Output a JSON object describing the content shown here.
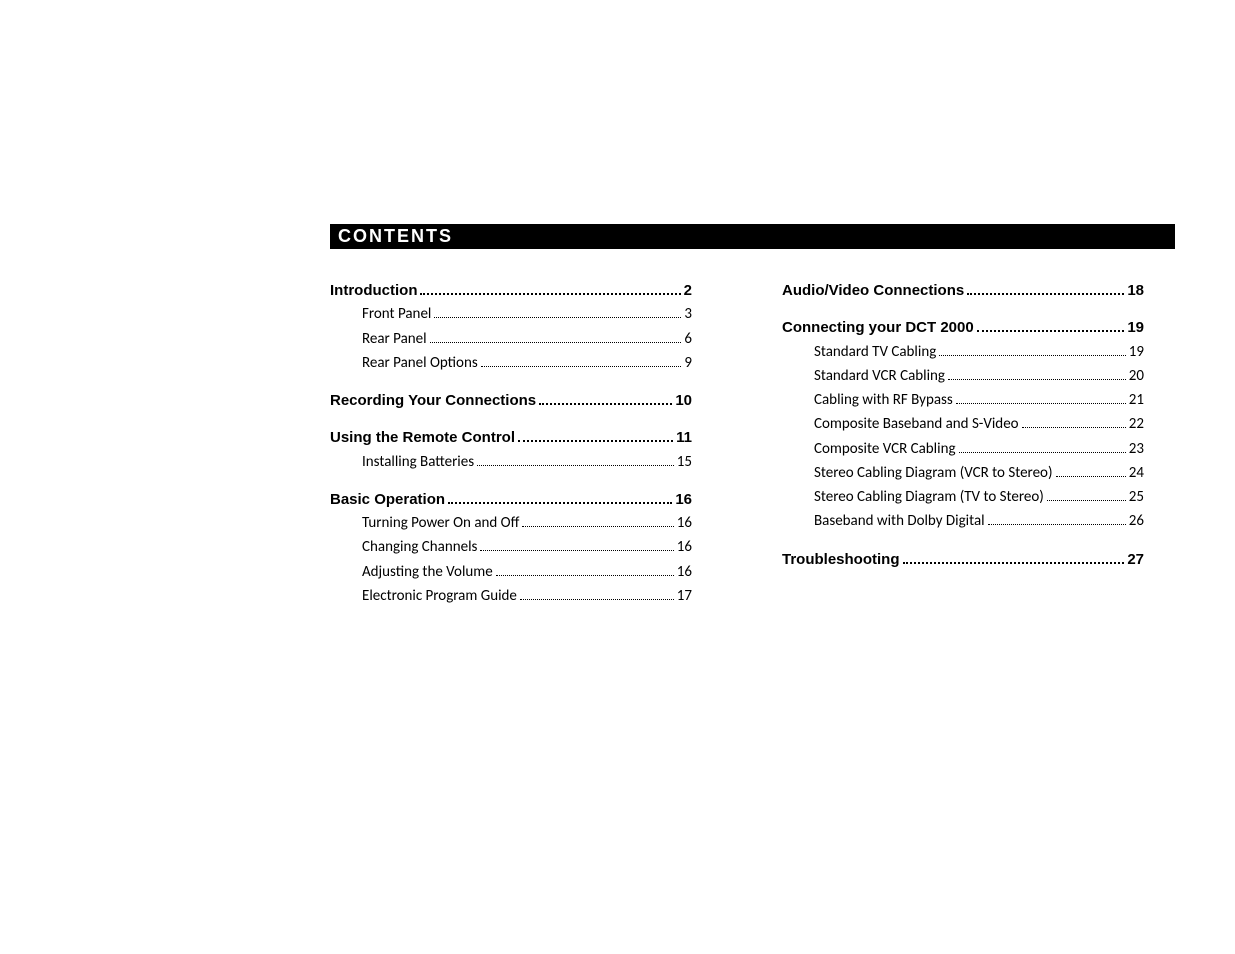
{
  "heading": "CONTENTS",
  "left": [
    {
      "kind": "section",
      "label": "Introduction",
      "page": "2"
    },
    {
      "kind": "sub",
      "label": "Front Panel",
      "page": "3"
    },
    {
      "kind": "sub",
      "label": "Rear Panel",
      "page": "6"
    },
    {
      "kind": "sub",
      "label": "Rear Panel Options",
      "page": "9"
    },
    {
      "kind": "section",
      "label": "Recording Your Connections",
      "page": "10"
    },
    {
      "kind": "section",
      "label": "Using the Remote Control",
      "page": "11"
    },
    {
      "kind": "sub",
      "label": "Installing Batteries",
      "page": "15"
    },
    {
      "kind": "section",
      "label": "Basic Operation",
      "page": "16"
    },
    {
      "kind": "sub",
      "label": "Turning Power On and Off",
      "page": "16"
    },
    {
      "kind": "sub",
      "label": "Changing Channels",
      "page": "16"
    },
    {
      "kind": "sub",
      "label": "Adjusting the Volume",
      "page": "16"
    },
    {
      "kind": "sub",
      "label": "Electronic Program Guide",
      "page": "17"
    }
  ],
  "right": [
    {
      "kind": "section",
      "label": "Audio/Video Connections",
      "page": "18"
    },
    {
      "kind": "section",
      "label": "Connecting your DCT 2000",
      "page": "19"
    },
    {
      "kind": "sub",
      "label": "Standard TV Cabling",
      "page": "19"
    },
    {
      "kind": "sub",
      "label": "Standard VCR Cabling",
      "page": "20"
    },
    {
      "kind": "sub",
      "label": "Cabling with RF Bypass",
      "page": "21"
    },
    {
      "kind": "sub",
      "label": "Composite Baseband and S-Video",
      "page": "22"
    },
    {
      "kind": "sub",
      "label": "Composite VCR Cabling",
      "page": "23"
    },
    {
      "kind": "sub",
      "label": "Stereo Cabling Diagram (VCR to Stereo)",
      "page": "24"
    },
    {
      "kind": "sub",
      "label": "Stereo Cabling Diagram (TV to Stereo)",
      "page": "25"
    },
    {
      "kind": "sub",
      "label": "Baseband with Dolby Digital",
      "page": "26"
    },
    {
      "kind": "section",
      "label": "Troubleshooting",
      "page": "27"
    }
  ],
  "colors": {
    "bg": "#ffffff",
    "text": "#000000",
    "bar_bg": "#000000",
    "bar_fg": "#ffffff"
  },
  "typography": {
    "title_fontsize": 18,
    "section_fontsize": 15,
    "sub_fontsize": 15
  }
}
